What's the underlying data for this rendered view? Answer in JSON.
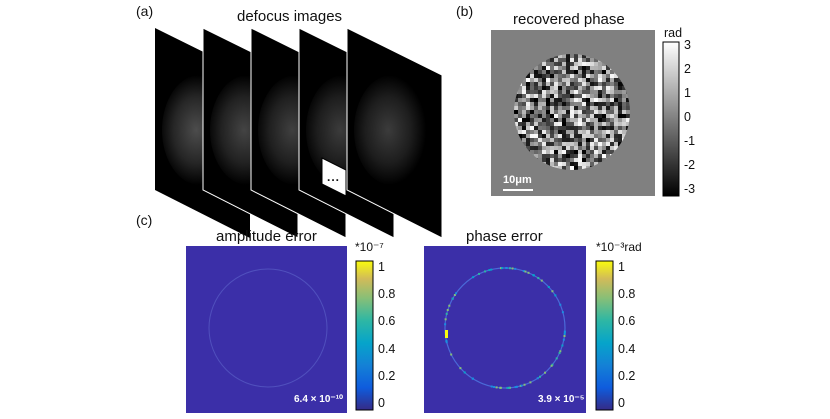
{
  "panel_a": {
    "label": "(a)",
    "title": "defocus images",
    "ellipsis": "..."
  },
  "panel_b": {
    "label": "(b)",
    "title": "recovered phase",
    "scale_bar": "10μm",
    "colorbar_unit": "rad",
    "colorbar_ticks": [
      "3",
      "2",
      "1",
      "0",
      "-1",
      "-2",
      "-3"
    ]
  },
  "panel_c": {
    "label": "(c)",
    "amplitude": {
      "title": "amplitude error",
      "unit": "*10⁻⁷",
      "colorbar_ticks": [
        "1",
        "0.8",
        "0.6",
        "0.4",
        "0.2",
        "0"
      ],
      "error_value": "6.4 × 10⁻¹⁰"
    },
    "phase": {
      "title": "phase error",
      "unit": "*10⁻³rad",
      "colorbar_ticks": [
        "1",
        "0.8",
        "0.6",
        "0.4",
        "0.2",
        "0"
      ],
      "error_value": "3.9 × 10⁻⁵"
    }
  },
  "colors": {
    "error_background": "#3b2fa8",
    "gray_background": "#808080",
    "parula_low": "#352a87",
    "parula_high": "#f9fb0e"
  }
}
